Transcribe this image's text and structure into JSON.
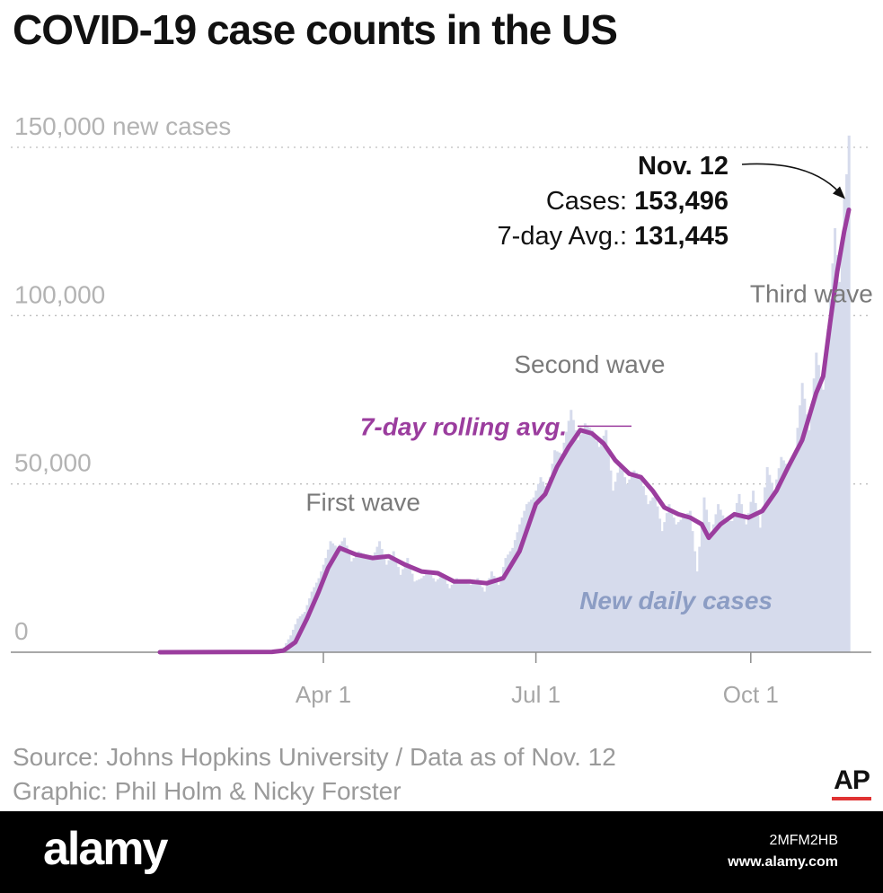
{
  "chart_data": {
    "type": "bar+line",
    "title": "COVID-19 case counts in the US",
    "y_unit_label": "new cases",
    "ylim": [
      0,
      155000
    ],
    "yticks": [
      {
        "value": 150000,
        "label": "150,000"
      },
      {
        "value": 100000,
        "label": "100,000"
      },
      {
        "value": 50000,
        "label": "50,000"
      },
      {
        "value": 0,
        "label": "0"
      }
    ],
    "xlim": [
      "2020-01-22",
      "2020-11-12"
    ],
    "xticks": [
      {
        "date": "2020-04-01",
        "label": "Apr 1"
      },
      {
        "date": "2020-07-01",
        "label": "Jul 1"
      },
      {
        "date": "2020-10-01",
        "label": "Oct 1"
      }
    ],
    "series": [
      {
        "name": "New daily cases",
        "kind": "bar",
        "color": "#d6dbec",
        "points": [
          [
            "2020-03-01",
            10
          ],
          [
            "2020-03-08",
            200
          ],
          [
            "2020-03-12",
            400
          ],
          [
            "2020-03-15",
            1500
          ],
          [
            "2020-03-18",
            5000
          ],
          [
            "2020-03-21",
            10000
          ],
          [
            "2020-03-24",
            12000
          ],
          [
            "2020-03-27",
            18000
          ],
          [
            "2020-03-30",
            22000
          ],
          [
            "2020-04-02",
            28000
          ],
          [
            "2020-04-04",
            33000
          ],
          [
            "2020-04-07",
            31000
          ],
          [
            "2020-04-10",
            34000
          ],
          [
            "2020-04-13",
            27000
          ],
          [
            "2020-04-16",
            30000
          ],
          [
            "2020-04-19",
            29000
          ],
          [
            "2020-04-22",
            28000
          ],
          [
            "2020-04-25",
            33000
          ],
          [
            "2020-04-28",
            26000
          ],
          [
            "2020-05-01",
            30000
          ],
          [
            "2020-05-04",
            23000
          ],
          [
            "2020-05-07",
            28000
          ],
          [
            "2020-05-10",
            21000
          ],
          [
            "2020-05-13",
            22000
          ],
          [
            "2020-05-16",
            24000
          ],
          [
            "2020-05-19",
            21000
          ],
          [
            "2020-05-22",
            23000
          ],
          [
            "2020-05-25",
            19000
          ],
          [
            "2020-05-28",
            22000
          ],
          [
            "2020-05-31",
            21000
          ],
          [
            "2020-06-03",
            20000
          ],
          [
            "2020-06-06",
            22000
          ],
          [
            "2020-06-09",
            18000
          ],
          [
            "2020-06-12",
            24000
          ],
          [
            "2020-06-15",
            20000
          ],
          [
            "2020-06-18",
            28000
          ],
          [
            "2020-06-21",
            31000
          ],
          [
            "2020-06-24",
            38000
          ],
          [
            "2020-06-27",
            44000
          ],
          [
            "2020-06-30",
            46000
          ],
          [
            "2020-07-03",
            52000
          ],
          [
            "2020-07-06",
            48000
          ],
          [
            "2020-07-09",
            60000
          ],
          [
            "2020-07-12",
            59000
          ],
          [
            "2020-07-16",
            72000
          ],
          [
            "2020-07-19",
            63000
          ],
          [
            "2020-07-22",
            68000
          ],
          [
            "2020-07-25",
            66000
          ],
          [
            "2020-07-28",
            61000
          ],
          [
            "2020-07-31",
            66000
          ],
          [
            "2020-08-03",
            48000
          ],
          [
            "2020-08-06",
            56000
          ],
          [
            "2020-08-09",
            50000
          ],
          [
            "2020-08-12",
            54000
          ],
          [
            "2020-08-15",
            52000
          ],
          [
            "2020-08-18",
            44000
          ],
          [
            "2020-08-21",
            47000
          ],
          [
            "2020-08-24",
            36000
          ],
          [
            "2020-08-27",
            44000
          ],
          [
            "2020-08-30",
            38000
          ],
          [
            "2020-09-02",
            40000
          ],
          [
            "2020-09-05",
            42000
          ],
          [
            "2020-09-08",
            24000
          ],
          [
            "2020-09-11",
            46000
          ],
          [
            "2020-09-14",
            35000
          ],
          [
            "2020-09-17",
            44000
          ],
          [
            "2020-09-20",
            39000
          ],
          [
            "2020-09-23",
            39000
          ],
          [
            "2020-09-26",
            47000
          ],
          [
            "2020-09-29",
            38000
          ],
          [
            "2020-10-02",
            48000
          ],
          [
            "2020-10-05",
            37000
          ],
          [
            "2020-10-08",
            55000
          ],
          [
            "2020-10-11",
            48000
          ],
          [
            "2020-10-14",
            58000
          ],
          [
            "2020-10-17",
            55000
          ],
          [
            "2020-10-20",
            60000
          ],
          [
            "2020-10-23",
            80000
          ],
          [
            "2020-10-26",
            66000
          ],
          [
            "2020-10-29",
            89000
          ],
          [
            "2020-11-01",
            78000
          ],
          [
            "2020-11-04",
            105000
          ],
          [
            "2020-11-06",
            126000
          ],
          [
            "2020-11-08",
            110000
          ],
          [
            "2020-11-10",
            135000
          ],
          [
            "2020-11-11",
            142000
          ],
          [
            "2020-11-12",
            153496
          ]
        ]
      },
      {
        "name": "7-day rolling avg.",
        "kind": "line",
        "color": "#9b3d9e",
        "points": [
          [
            "2020-01-22",
            0
          ],
          [
            "2020-03-10",
            100
          ],
          [
            "2020-03-15",
            500
          ],
          [
            "2020-03-20",
            3000
          ],
          [
            "2020-03-25",
            10000
          ],
          [
            "2020-03-30",
            18000
          ],
          [
            "2020-04-03",
            25000
          ],
          [
            "2020-04-08",
            31000
          ],
          [
            "2020-04-15",
            29000
          ],
          [
            "2020-04-22",
            28000
          ],
          [
            "2020-04-29",
            28500
          ],
          [
            "2020-05-06",
            26000
          ],
          [
            "2020-05-13",
            24000
          ],
          [
            "2020-05-20",
            23500
          ],
          [
            "2020-05-27",
            21000
          ],
          [
            "2020-06-03",
            21000
          ],
          [
            "2020-06-10",
            20500
          ],
          [
            "2020-06-17",
            22000
          ],
          [
            "2020-06-24",
            30000
          ],
          [
            "2020-07-01",
            44000
          ],
          [
            "2020-07-05",
            47000
          ],
          [
            "2020-07-10",
            55000
          ],
          [
            "2020-07-15",
            61000
          ],
          [
            "2020-07-20",
            66000
          ],
          [
            "2020-07-25",
            65000
          ],
          [
            "2020-07-30",
            62000
          ],
          [
            "2020-08-04",
            57000
          ],
          [
            "2020-08-10",
            53000
          ],
          [
            "2020-08-15",
            52000
          ],
          [
            "2020-08-20",
            48000
          ],
          [
            "2020-08-25",
            43000
          ],
          [
            "2020-08-31",
            41000
          ],
          [
            "2020-09-05",
            40000
          ],
          [
            "2020-09-10",
            38000
          ],
          [
            "2020-09-13",
            34000
          ],
          [
            "2020-09-18",
            38000
          ],
          [
            "2020-09-24",
            41000
          ],
          [
            "2020-09-30",
            40000
          ],
          [
            "2020-10-06",
            42000
          ],
          [
            "2020-10-12",
            48000
          ],
          [
            "2020-10-17",
            55000
          ],
          [
            "2020-10-23",
            63000
          ],
          [
            "2020-10-29",
            77000
          ],
          [
            "2020-11-01",
            82000
          ],
          [
            "2020-11-04",
            98000
          ],
          [
            "2020-11-07",
            113000
          ],
          [
            "2020-11-10",
            125000
          ],
          [
            "2020-11-12",
            131445
          ]
        ]
      }
    ],
    "annotations": [
      {
        "text": "First wave",
        "date": "2020-04-18",
        "y": 42000
      },
      {
        "text": "Second wave",
        "date": "2020-07-24",
        "y": 83000
      },
      {
        "text": "Third wave",
        "date": "2020-10-27",
        "y": 104000
      },
      {
        "text": "7-day rolling avg.",
        "date": "2020-05-31",
        "y": 64500,
        "style": "series-label"
      },
      {
        "text": "New daily cases",
        "date": "2020-08-30",
        "y": 12800,
        "style": "series-label"
      }
    ],
    "callout": {
      "date_label": "Nov. 12",
      "cases_label": "Cases:",
      "cases_value": "153,496",
      "avg_label": "7-day Avg.:",
      "avg_value": "131,445"
    }
  },
  "source": "Source: Johns Hopkins University / Data as of Nov. 12",
  "credit": "Graphic: Phil Holm & Nicky Forster",
  "logo": "AP",
  "watermark": {
    "brand": "alamy",
    "image_id": "2MFM2HB",
    "url": "www.alamy.com"
  }
}
